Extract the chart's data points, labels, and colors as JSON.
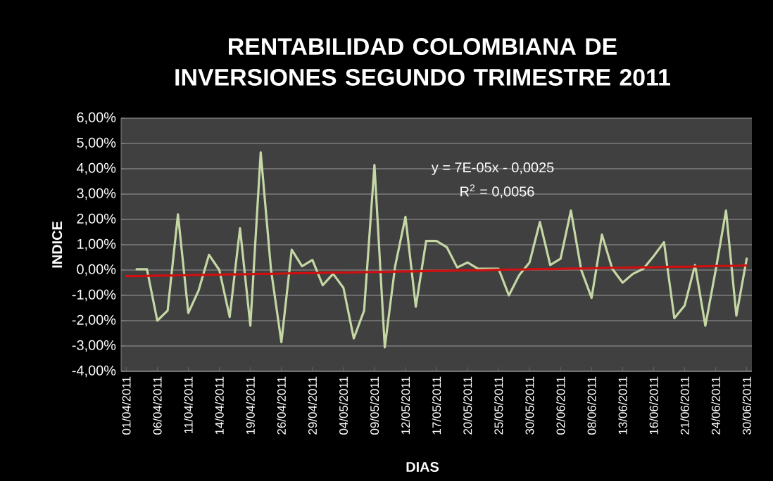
{
  "chart_data": {
    "type": "line",
    "title": "RENTABILIDAD COLOMBIANA DE INVERSIONES SEGUNDO TRIMESTRE 2011",
    "xlabel": "DIAS",
    "ylabel": "INDICE",
    "categories": [
      "01/04/2011",
      null,
      null,
      "06/04/2011",
      null,
      null,
      "11/04/2011",
      null,
      null,
      "14/04/2011",
      null,
      null,
      "19/04/2011",
      null,
      null,
      "26/04/2011",
      null,
      null,
      "29/04/2011",
      null,
      null,
      "04/05/2011",
      null,
      null,
      "09/05/2011",
      null,
      null,
      "12/05/2011",
      null,
      null,
      "17/05/2011",
      null,
      null,
      "20/05/2011",
      null,
      null,
      "25/05/2011",
      null,
      null,
      "30/05/2011",
      null,
      null,
      "02/06/2011",
      null,
      null,
      "08/06/2011",
      null,
      null,
      "13/06/2011",
      null,
      null,
      "16/06/2011",
      null,
      null,
      "21/06/2011",
      null,
      null,
      "24/06/2011",
      null,
      null,
      "30/06/2011"
    ],
    "series": [
      {
        "color": "#c4d7a4",
        "values": [
          null,
          0.03,
          0.03,
          -2.0,
          -1.6,
          2.2,
          -1.7,
          -0.8,
          0.6,
          0.0,
          -1.85,
          1.65,
          -2.2,
          4.65,
          0.0,
          -2.85,
          0.8,
          0.15,
          0.4,
          -0.6,
          -0.15,
          -0.7,
          -2.7,
          -1.6,
          4.15,
          -3.05,
          0.15,
          2.1,
          -1.45,
          1.15,
          1.15,
          0.9,
          0.1,
          0.3,
          0.05,
          0.05,
          0.05,
          -1.0,
          -0.2,
          0.3,
          1.9,
          0.2,
          0.45,
          2.35,
          0.0,
          -1.1,
          1.4,
          0.05,
          -0.5,
          -0.15,
          0.05,
          0.55,
          1.1,
          -1.9,
          -1.4,
          0.2,
          -2.2,
          0.0,
          2.35,
          -1.8,
          0.45
        ]
      },
      {
        "type": "line",
        "color": "#d01010",
        "values": [
          -0.24,
          -0.24,
          -0.23,
          -0.22,
          -0.22,
          -0.21,
          -0.2,
          -0.19,
          -0.19,
          -0.18,
          -0.17,
          -0.17,
          -0.16,
          -0.15,
          -0.15,
          -0.14,
          -0.13,
          -0.12,
          -0.12,
          -0.11,
          -0.1,
          -0.1,
          -0.09,
          -0.08,
          -0.08,
          -0.07,
          -0.06,
          -0.05,
          -0.05,
          -0.04,
          -0.03,
          -0.03,
          -0.02,
          -0.01,
          -0.01,
          0.0,
          0.01,
          0.02,
          0.02,
          0.03,
          0.04,
          0.04,
          0.05,
          0.06,
          0.06,
          0.07,
          0.08,
          0.09,
          0.09,
          0.1,
          0.11,
          0.11,
          0.12,
          0.13,
          0.13,
          0.14,
          0.15,
          0.16,
          0.16,
          0.17,
          0.18
        ]
      }
    ],
    "ylim": [
      -4,
      6
    ],
    "yticks": [
      {
        "value": -4,
        "label": "-4,00%"
      },
      {
        "value": -3,
        "label": "-3,00%"
      },
      {
        "value": -2,
        "label": "-2,00%"
      },
      {
        "value": -1,
        "label": "-1,00%"
      },
      {
        "value": 0,
        "label": "0,00%"
      },
      {
        "value": 1,
        "label": "1,00%"
      },
      {
        "value": 2,
        "label": "2,00%"
      },
      {
        "value": 3,
        "label": "3,00%"
      },
      {
        "value": 4,
        "label": "4,00%"
      },
      {
        "value": 5,
        "label": "5,00%"
      },
      {
        "value": 6,
        "label": "6,00%"
      }
    ],
    "grid": "y",
    "annotations": [
      "y = 7E-05x - 0,0025",
      "R$^{2}$ = 0,0056"
    ]
  }
}
